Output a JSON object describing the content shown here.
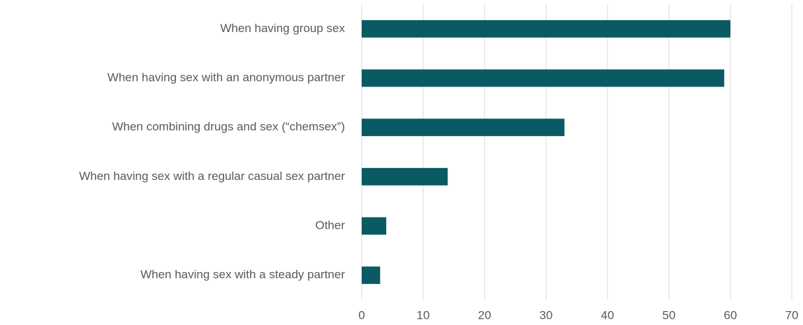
{
  "chart_data": {
    "type": "bar",
    "orientation": "horizontal",
    "categories": [
      "When having group sex",
      "When having sex with an anonymous partner",
      "When combining drugs and sex (“chemsex”)",
      "When having sex with a regular casual sex partner",
      "Other",
      "When having sex with a steady partner"
    ],
    "values": [
      60,
      59,
      33,
      14,
      4,
      3
    ],
    "color": "#0a5a64",
    "xlim": [
      0,
      70
    ],
    "xticks": [
      0,
      10,
      20,
      30,
      40,
      50,
      60,
      70
    ],
    "grid": true
  }
}
